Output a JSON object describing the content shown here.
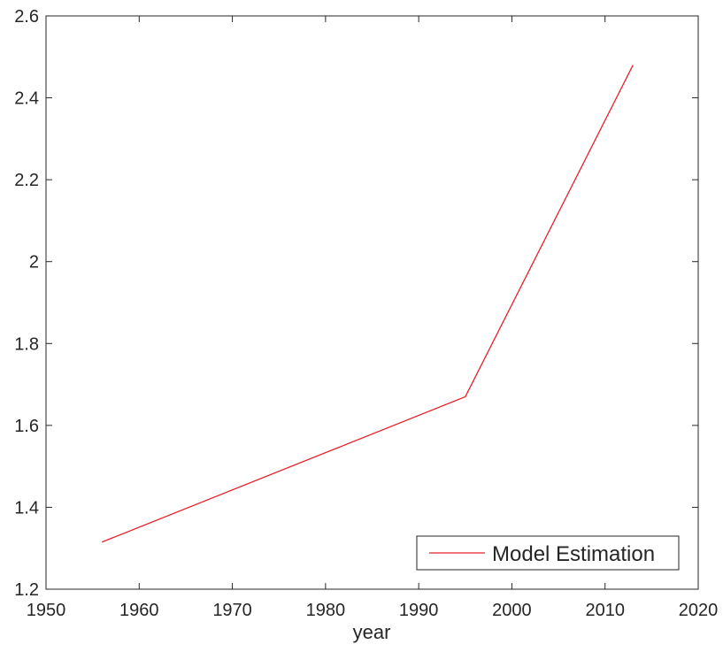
{
  "chart_data": {
    "type": "line",
    "title": "",
    "xlabel": "year",
    "ylabel": "",
    "xlim": [
      1950,
      2020
    ],
    "ylim": [
      1.2,
      2.6
    ],
    "xticks": [
      1950,
      1960,
      1970,
      1980,
      1990,
      2000,
      2010,
      2020
    ],
    "yticks": [
      1.2,
      1.4,
      1.6,
      1.8,
      2.0,
      2.2,
      2.4,
      2.6
    ],
    "xtick_labels": [
      "1950",
      "1960",
      "1970",
      "1980",
      "1990",
      "2000",
      "2010",
      "2020"
    ],
    "ytick_labels": [
      "1.2",
      "1.4",
      "1.6",
      "1.8",
      "2",
      "2.2",
      "2.4",
      "2.6"
    ],
    "grid": false,
    "legend_position": "bottom-right",
    "series": [
      {
        "name": "Model Estimation",
        "color": "#e8202a",
        "x": [
          1956,
          1995,
          2013
        ],
        "y": [
          1.315,
          1.67,
          2.48
        ]
      }
    ]
  }
}
